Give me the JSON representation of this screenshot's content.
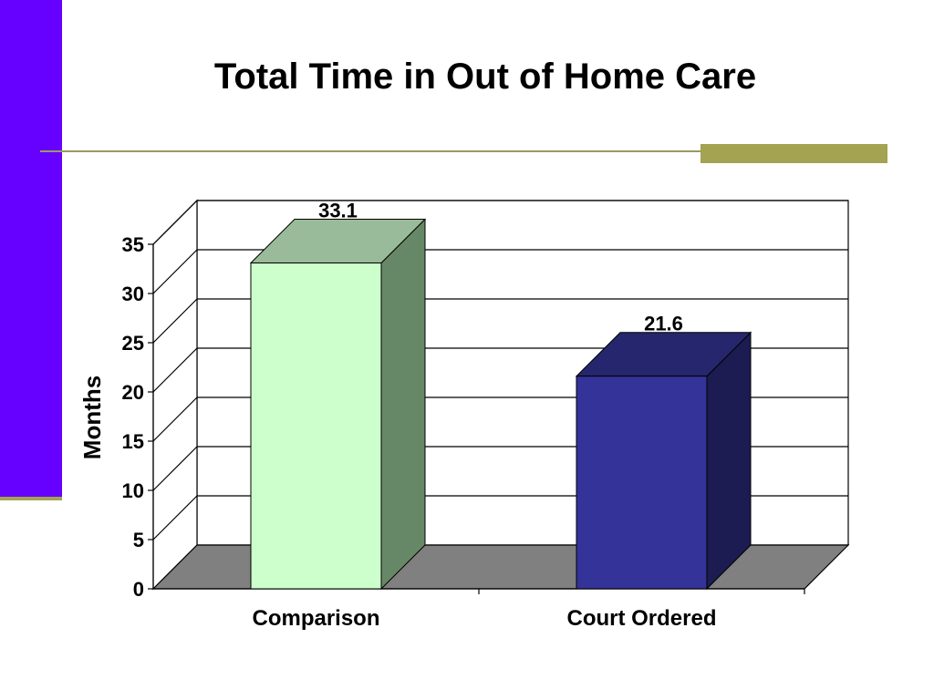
{
  "theme": {
    "sidebar_color": "#6600ff",
    "accent_olive": "#a3a352",
    "rule_color": "#999966"
  },
  "slide": {
    "title": "Total Time in Out of Home Care"
  },
  "chart_data": {
    "type": "bar",
    "title": "Total Time in Out of Home Care",
    "xlabel": "",
    "ylabel": "Months",
    "categories": [
      "Comparison",
      "Court Ordered"
    ],
    "values": [
      33.1,
      21.6
    ],
    "data_labels": [
      "33.1",
      "21.6"
    ],
    "ylim": [
      0,
      35
    ],
    "yticks": [
      0,
      5,
      10,
      15,
      20,
      25,
      30,
      35
    ],
    "grid": true,
    "style": "3d",
    "bar_colors": [
      {
        "front": "#ccffcc",
        "top": "#99bb99",
        "side": "#668866"
      },
      {
        "front": "#333399",
        "top": "#26266e",
        "side": "#1c1c52"
      }
    ],
    "floor_color": "#808080"
  }
}
